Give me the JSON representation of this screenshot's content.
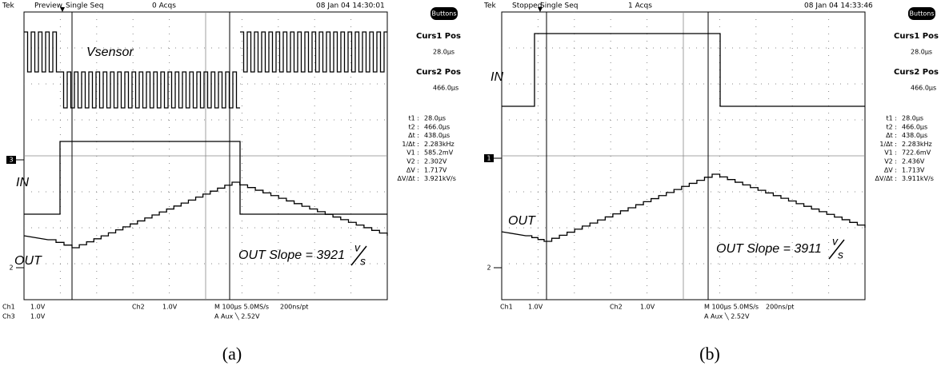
{
  "panels": [
    {
      "header": {
        "brand": "Tek",
        "mode": "Preview",
        "trigger": "Single Seq",
        "acqs": "0 Acqs",
        "timestamp": "08 Jan 04 14:30:01"
      },
      "button": "Buttons",
      "cursors": [
        {
          "title": "Curs1 Pos",
          "value": "28.0μs"
        },
        {
          "title": "Curs2 Pos",
          "value": "466.0μs"
        }
      ],
      "readouts": [
        [
          "t1 :",
          "28.0μs"
        ],
        [
          "t2 :",
          "466.0μs"
        ],
        [
          "Δt :",
          "438.0μs"
        ],
        [
          "1/Δt :",
          "2.283kHz"
        ],
        [
          "V1 :",
          "585.2mV"
        ],
        [
          "V2 :",
          "2.302V"
        ],
        [
          "ΔV :",
          "1.717V"
        ],
        [
          "ΔV/Δt :",
          "3.921kV/s"
        ]
      ],
      "trace_labels": [
        "Vsensor",
        "IN",
        "OUT"
      ],
      "slope": {
        "text": "OUT Slope = 3921",
        "unit_num": "v",
        "unit_den": "s"
      },
      "markers": [
        "3",
        "2"
      ],
      "footer": [
        "Ch1",
        "1.0V",
        "Ch3",
        "1.0V",
        "Ch2",
        "1.0V",
        "M 100μs 5.0MS/s",
        "200ns/pt",
        "A  Aux  ╲  2.52V"
      ],
      "caption": "(a)"
    },
    {
      "header": {
        "brand": "Tek",
        "mode": "Stopped",
        "trigger": "Single Seq",
        "acqs": "1 Acqs",
        "timestamp": "08 Jan 04 14:33:46"
      },
      "button": "Buttons",
      "cursors": [
        {
          "title": "Curs1 Pos",
          "value": "28.0μs"
        },
        {
          "title": "Curs2 Pos",
          "value": "466.0μs"
        }
      ],
      "readouts": [
        [
          "t1 :",
          "28.0μs"
        ],
        [
          "t2 :",
          "466.0μs"
        ],
        [
          "Δt :",
          "438.0μs"
        ],
        [
          "1/Δt :",
          "2.283kHz"
        ],
        [
          "V1 :",
          "722.6mV"
        ],
        [
          "V2 :",
          "2.436V"
        ],
        [
          "ΔV :",
          "1.713V"
        ],
        [
          "ΔV/Δt :",
          "3.911kV/s"
        ]
      ],
      "trace_labels": [
        "IN",
        "OUT"
      ],
      "slope": {
        "text": "OUT Slope = 3911",
        "unit_num": "v",
        "unit_den": "s"
      },
      "markers": [
        "1",
        "2"
      ],
      "footer": [
        "Ch1",
        "1.0V",
        "Ch2",
        "1.0V",
        "M 100μs 5.0MS/s",
        "200ns/pt",
        "A  Aux  ╲  2.52V"
      ],
      "caption": "(b)"
    }
  ]
}
